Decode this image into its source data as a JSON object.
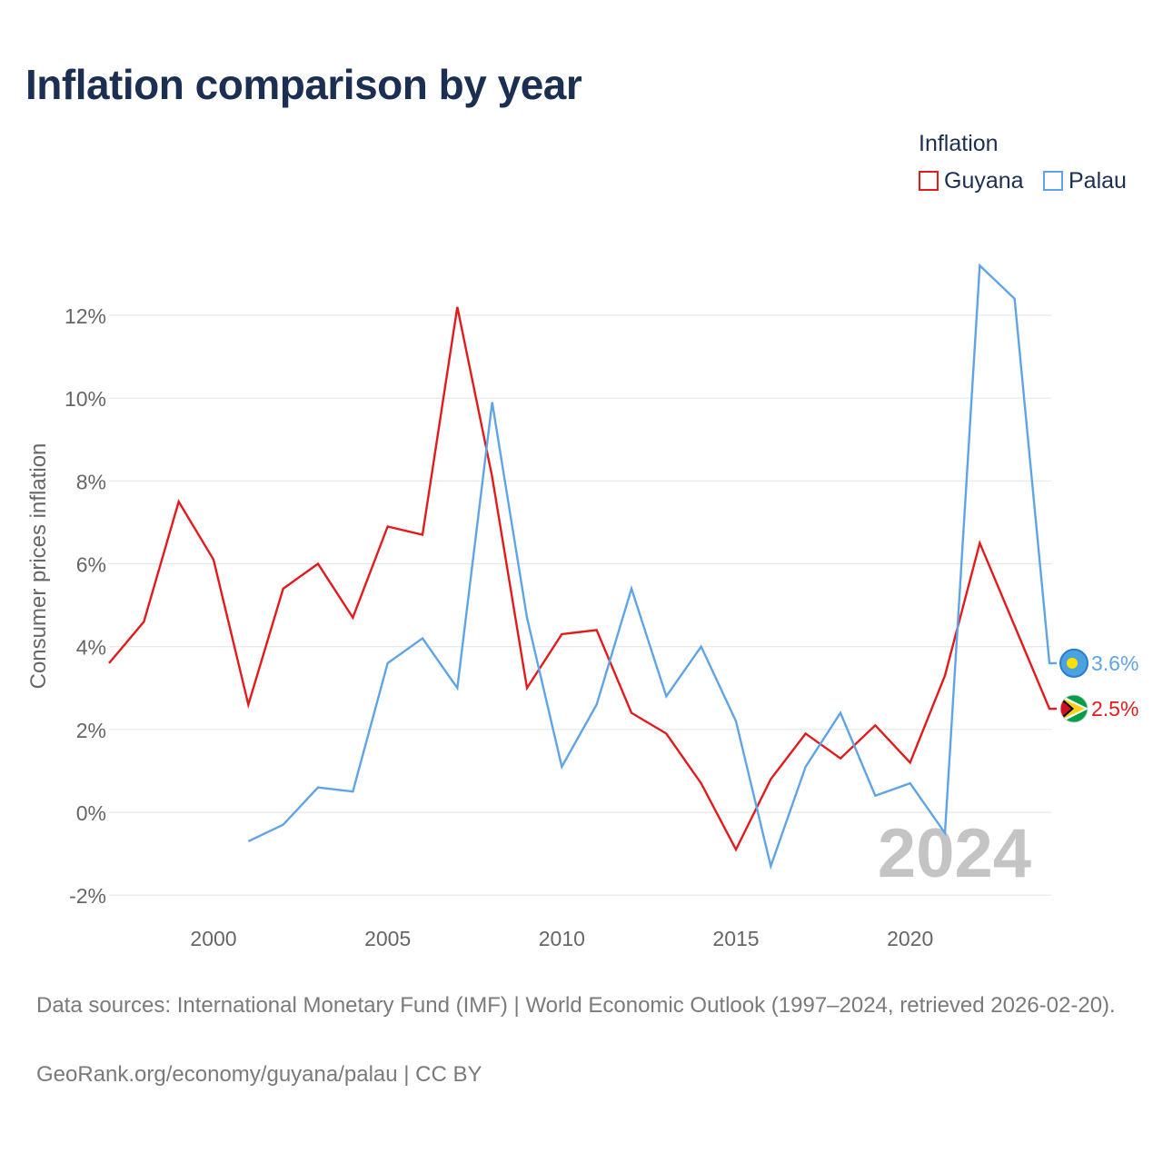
{
  "title": "Inflation comparison by year",
  "legend": {
    "title": "Inflation",
    "items": [
      {
        "label": "Guyana",
        "color": "#e31a1c"
      },
      {
        "label": "Palau",
        "color": "#5fa4e6"
      }
    ]
  },
  "chart_data": {
    "type": "line",
    "title": "Inflation comparison by year",
    "xlabel": "",
    "ylabel": "Consumer prices inflation",
    "xlim": [
      1997,
      2024
    ],
    "ylim": [
      -2.2,
      13.5
    ],
    "x_ticks": [
      2000,
      2005,
      2010,
      2015,
      2020
    ],
    "y_ticks": [
      -2,
      0,
      2,
      4,
      6,
      8,
      10,
      12
    ],
    "y_tick_labels": [
      "-2%",
      "0%",
      "2%",
      "4%",
      "6%",
      "8%",
      "10%",
      "12%"
    ],
    "grid": true,
    "legend_position": "top-right",
    "watermark_year": "2024",
    "series": [
      {
        "name": "Guyana",
        "color": "#e31a1c",
        "x": [
          1997,
          1998,
          1999,
          2000,
          2001,
          2002,
          2003,
          2004,
          2005,
          2006,
          2007,
          2008,
          2009,
          2010,
          2011,
          2012,
          2013,
          2014,
          2015,
          2016,
          2017,
          2018,
          2019,
          2020,
          2021,
          2022,
          2023,
          2024
        ],
        "values": [
          3.6,
          4.6,
          7.5,
          6.1,
          2.6,
          5.4,
          6.0,
          4.7,
          6.9,
          6.7,
          12.2,
          8.1,
          3.0,
          4.3,
          4.4,
          2.4,
          1.9,
          0.7,
          -0.9,
          0.8,
          1.9,
          1.3,
          2.1,
          1.2,
          3.3,
          6.5,
          4.5,
          2.5
        ],
        "end_label": "2.5%"
      },
      {
        "name": "Palau",
        "color": "#5fa4e6",
        "x": [
          2001,
          2002,
          2003,
          2004,
          2005,
          2006,
          2007,
          2008,
          2009,
          2010,
          2011,
          2012,
          2013,
          2014,
          2015,
          2016,
          2017,
          2018,
          2019,
          2020,
          2021,
          2022,
          2023,
          2024
        ],
        "values": [
          -0.7,
          -0.3,
          0.6,
          0.5,
          3.6,
          4.2,
          3.0,
          9.9,
          4.7,
          1.1,
          2.6,
          5.4,
          2.8,
          4.0,
          2.2,
          -1.3,
          1.1,
          2.4,
          0.4,
          0.7,
          -0.5,
          13.2,
          12.4,
          3.6
        ],
        "end_label": "3.6%"
      }
    ]
  },
  "footer": {
    "source": "Data sources: International Monetary Fund (IMF) | World Economic Outlook (1997–2024, retrieved 2026-02-20).",
    "credit": "GeoRank.org/economy/guyana/palau | CC BY"
  }
}
